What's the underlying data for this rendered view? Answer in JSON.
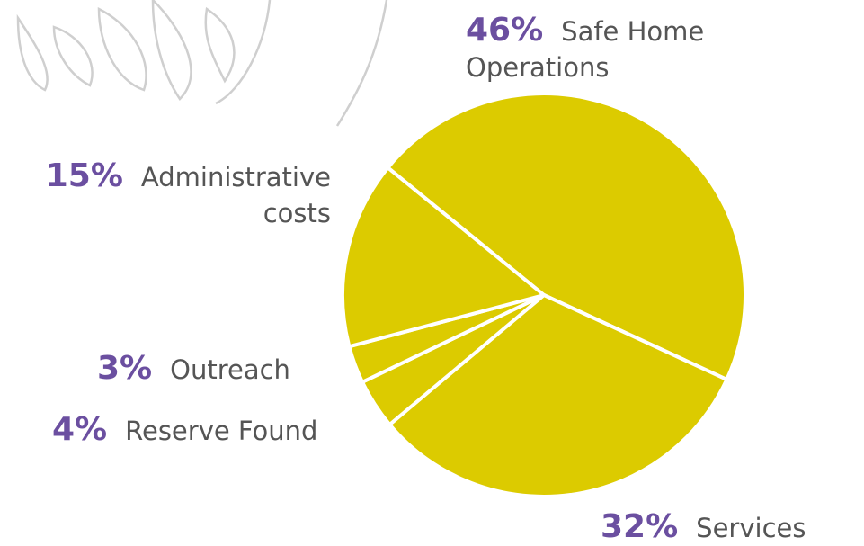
{
  "chart_data": {
    "type": "pie",
    "categories": [
      "Safe Home Operations",
      "Services",
      "Reserve Found",
      "Outreach",
      "Administrative costs"
    ],
    "values": [
      46,
      32,
      4,
      3,
      15
    ],
    "value_labels": [
      "46%",
      "32%",
      "4%",
      "3%",
      "15%"
    ],
    "color": "#dccb00",
    "label_color": "#6b4fa0"
  }
}
